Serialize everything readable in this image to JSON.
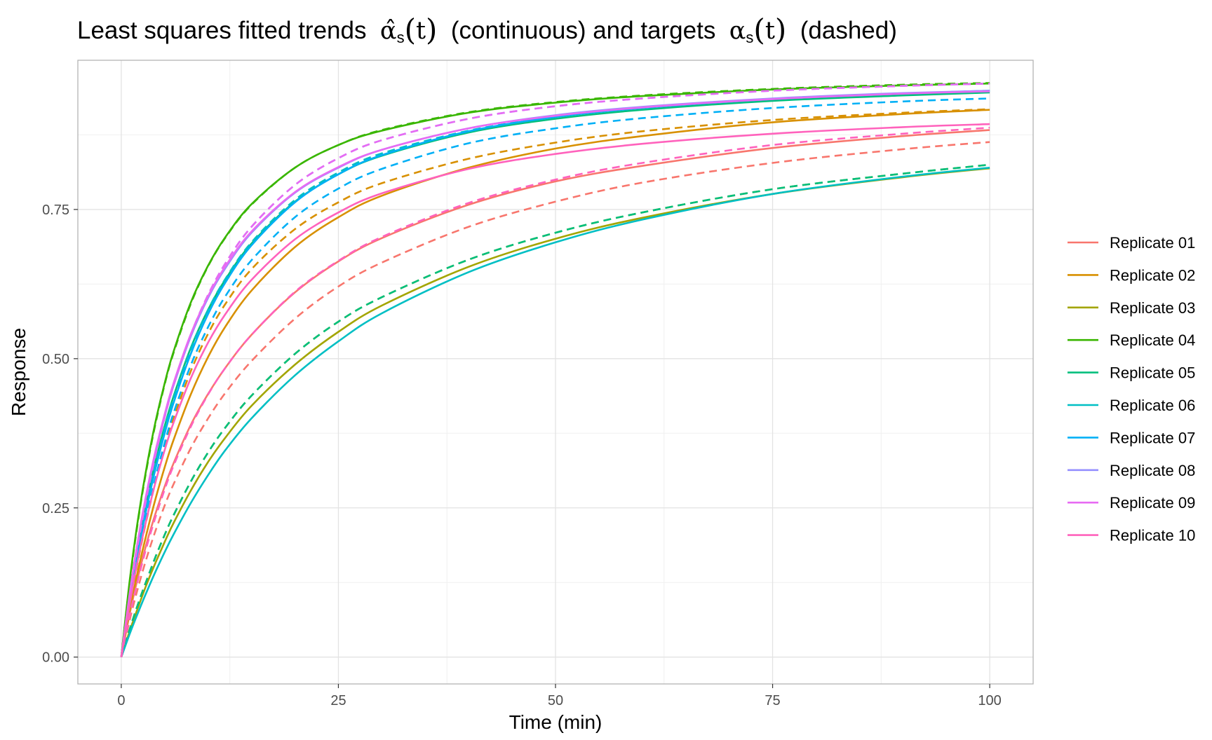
{
  "title": {
    "prefix": "Least squares fitted trends",
    "fitted_symbol": "α̂",
    "fitted_sub": "s",
    "arg": "t",
    "middle": "(continuous) and targets",
    "target_symbol": "α",
    "target_sub": "s",
    "suffix": "(dashed)"
  },
  "chart_data": {
    "type": "line",
    "xlabel": "Time (min)",
    "ylabel": "Response",
    "xlim": [
      -5,
      105
    ],
    "ylim": [
      -0.045,
      1.0
    ],
    "x_ticks": [
      0,
      25,
      50,
      75,
      100
    ],
    "x_tick_labels": [
      "0",
      "25",
      "50",
      "75",
      "100"
    ],
    "y_ticks": [
      0,
      0.25,
      0.5,
      0.75
    ],
    "y_tick_labels": [
      "0.00",
      "0.25",
      "0.50",
      "0.75"
    ],
    "grid": true,
    "legend_position": "right",
    "x": [
      0,
      1,
      2,
      3,
      4,
      5,
      6,
      8,
      10,
      12,
      15,
      20,
      25,
      30,
      40,
      50,
      60,
      75,
      90,
      100
    ],
    "series": [
      {
        "name": "Replicate 01",
        "color": "#F8766D",
        "fitted": [
          0,
          0.075,
          0.139,
          0.195,
          0.243,
          0.286,
          0.324,
          0.389,
          0.441,
          0.485,
          0.54,
          0.611,
          0.663,
          0.702,
          0.758,
          0.797,
          0.823,
          0.853,
          0.873,
          0.883
        ],
        "target": [
          0,
          0.064,
          0.12,
          0.17,
          0.214,
          0.254,
          0.289,
          0.35,
          0.4,
          0.443,
          0.496,
          0.567,
          0.621,
          0.661,
          0.721,
          0.763,
          0.795,
          0.828,
          0.851,
          0.863
        ]
      },
      {
        "name": "Replicate 02",
        "color": "#D89000",
        "fitted": [
          0,
          0.08,
          0.15,
          0.212,
          0.268,
          0.318,
          0.363,
          0.44,
          0.503,
          0.554,
          0.614,
          0.687,
          0.737,
          0.773,
          0.82,
          0.852,
          0.873,
          0.896,
          0.91,
          0.917
        ],
        "target": [
          0,
          0.089,
          0.167,
          0.236,
          0.297,
          0.351,
          0.399,
          0.479,
          0.542,
          0.592,
          0.65,
          0.717,
          0.762,
          0.794,
          0.835,
          0.862,
          0.881,
          0.9,
          0.912,
          0.918
        ]
      },
      {
        "name": "Replicate 03",
        "color": "#A3A500",
        "fitted": [
          0,
          0.045,
          0.086,
          0.125,
          0.16,
          0.193,
          0.224,
          0.279,
          0.327,
          0.368,
          0.421,
          0.49,
          0.545,
          0.589,
          0.654,
          0.701,
          0.736,
          0.776,
          0.804,
          0.819
        ],
        "target": [
          0,
          0.048,
          0.092,
          0.132,
          0.17,
          0.205,
          0.237,
          0.294,
          0.343,
          0.385,
          0.438,
          0.508,
          0.562,
          0.603,
          0.666,
          0.711,
          0.745,
          0.784,
          0.81,
          0.825
        ]
      },
      {
        "name": "Replicate 04",
        "color": "#39B600",
        "fitted": [
          0,
          0.132,
          0.238,
          0.325,
          0.398,
          0.459,
          0.511,
          0.594,
          0.656,
          0.704,
          0.759,
          0.82,
          0.858,
          0.882,
          0.912,
          0.929,
          0.94,
          0.951,
          0.958,
          0.961
        ],
        "target": [
          0,
          0.129,
          0.235,
          0.322,
          0.395,
          0.457,
          0.509,
          0.592,
          0.655,
          0.703,
          0.758,
          0.82,
          0.858,
          0.883,
          0.913,
          0.93,
          0.941,
          0.952,
          0.959,
          0.962
        ]
      },
      {
        "name": "Replicate 05",
        "color": "#00BF7D",
        "fitted": [
          0,
          0.103,
          0.191,
          0.266,
          0.331,
          0.387,
          0.436,
          0.518,
          0.582,
          0.633,
          0.693,
          0.763,
          0.809,
          0.84,
          0.879,
          0.902,
          0.917,
          0.932,
          0.941,
          0.946
        ],
        "target": [
          0,
          0.048,
          0.092,
          0.132,
          0.17,
          0.205,
          0.237,
          0.294,
          0.343,
          0.385,
          0.438,
          0.508,
          0.562,
          0.603,
          0.666,
          0.711,
          0.745,
          0.784,
          0.81,
          0.825
        ]
      },
      {
        "name": "Replicate 06",
        "color": "#00BFC4",
        "fitted": [
          0,
          0.04,
          0.077,
          0.112,
          0.145,
          0.176,
          0.205,
          0.258,
          0.305,
          0.347,
          0.4,
          0.472,
          0.529,
          0.576,
          0.645,
          0.695,
          0.733,
          0.776,
          0.805,
          0.82
        ],
        "target": [
          0,
          0.1,
          0.186,
          0.261,
          0.326,
          0.383,
          0.433,
          0.516,
          0.582,
          0.634,
          0.695,
          0.766,
          0.812,
          0.844,
          0.882,
          0.905,
          0.92,
          0.935,
          0.944,
          0.949
        ]
      },
      {
        "name": "Replicate 07",
        "color": "#00B0F6",
        "fitted": [
          0,
          0.098,
          0.182,
          0.255,
          0.319,
          0.375,
          0.425,
          0.508,
          0.575,
          0.628,
          0.69,
          0.762,
          0.809,
          0.841,
          0.881,
          0.905,
          0.92,
          0.935,
          0.944,
          0.949
        ],
        "target": [
          0,
          0.092,
          0.172,
          0.242,
          0.304,
          0.359,
          0.408,
          0.489,
          0.553,
          0.605,
          0.665,
          0.737,
          0.785,
          0.818,
          0.861,
          0.886,
          0.903,
          0.92,
          0.931,
          0.936
        ]
      },
      {
        "name": "Replicate 08",
        "color": "#9590FF",
        "fitted": [
          0,
          0.108,
          0.2,
          0.278,
          0.345,
          0.403,
          0.454,
          0.537,
          0.602,
          0.652,
          0.711,
          0.778,
          0.82,
          0.85,
          0.886,
          0.908,
          0.922,
          0.936,
          0.945,
          0.949
        ],
        "target": [
          0,
          0.105,
          0.196,
          0.274,
          0.342,
          0.402,
          0.454,
          0.54,
          0.607,
          0.66,
          0.721,
          0.791,
          0.836,
          0.866,
          0.902,
          0.923,
          0.936,
          0.949,
          0.957,
          0.961
        ]
      },
      {
        "name": "Replicate 09",
        "color": "#E76BF3",
        "fitted": [
          0,
          0.11,
          0.203,
          0.282,
          0.349,
          0.407,
          0.458,
          0.541,
          0.605,
          0.655,
          0.713,
          0.779,
          0.821,
          0.85,
          0.886,
          0.907,
          0.921,
          0.935,
          0.944,
          0.948
        ],
        "target": [
          0,
          0.105,
          0.196,
          0.274,
          0.342,
          0.402,
          0.454,
          0.54,
          0.607,
          0.66,
          0.721,
          0.791,
          0.836,
          0.866,
          0.902,
          0.923,
          0.936,
          0.949,
          0.957,
          0.961
        ]
      },
      {
        "name": "Replicate 10",
        "color": "#FF62BC",
        "fitted": [
          0,
          0.092,
          0.17,
          0.237,
          0.296,
          0.347,
          0.392,
          0.467,
          0.527,
          0.575,
          0.632,
          0.7,
          0.745,
          0.777,
          0.818,
          0.843,
          0.86,
          0.877,
          0.888,
          0.893
        ],
        "target": [
          0,
          0.072,
          0.134,
          0.189,
          0.237,
          0.281,
          0.32,
          0.386,
          0.44,
          0.485,
          0.54,
          0.612,
          0.664,
          0.704,
          0.761,
          0.8,
          0.828,
          0.858,
          0.877,
          0.887
        ]
      }
    ]
  }
}
